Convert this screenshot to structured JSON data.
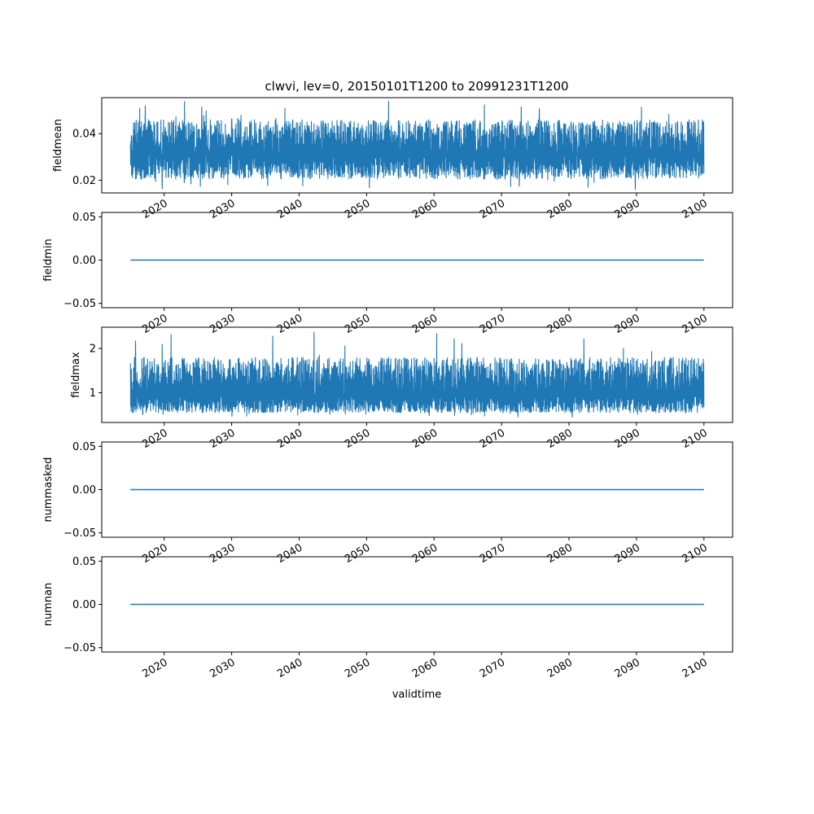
{
  "figure": {
    "title": "clwvi, lev=0, 20150101T1200 to 20991231T1200",
    "xlabel": "validtime",
    "line_color": "#1f77b4"
  },
  "chart_data": [
    {
      "type": "line",
      "ylabel": "fieldmean",
      "xlim": [
        "2010-09-30",
        "2104-04-01"
      ],
      "ylim": [
        0.0145,
        0.0555
      ],
      "yticks": [
        0.02,
        0.04
      ],
      "yticklabels": [
        "0.02",
        "0.04"
      ],
      "xticks": [
        "2020",
        "2030",
        "2040",
        "2050",
        "2060",
        "2070",
        "2080",
        "2090",
        "2100"
      ],
      "series": [
        {
          "x_start": "2015-01-01",
          "x_end": "2099-12-31",
          "center": 0.031,
          "low": 0.0205,
          "high": 0.046,
          "min": 0.016,
          "max": 0.054
        }
      ]
    },
    {
      "type": "line",
      "ylabel": "fieldmin",
      "xlim": [
        "2010-09-30",
        "2104-04-01"
      ],
      "ylim": [
        -0.055,
        0.055
      ],
      "yticks": [
        -0.05,
        0.0,
        0.05
      ],
      "yticklabels": [
        "−0.05",
        "0.00",
        "0.05"
      ],
      "xticks": [
        "2020",
        "2030",
        "2040",
        "2050",
        "2060",
        "2070",
        "2080",
        "2090",
        "2100"
      ],
      "series": [
        {
          "x_start": "2015-01-01",
          "x_end": "2099-12-31",
          "constant": 0.0
        }
      ]
    },
    {
      "type": "line",
      "ylabel": "fieldmax",
      "xlim": [
        "2010-09-30",
        "2104-04-01"
      ],
      "ylim": [
        0.33,
        2.48
      ],
      "yticks": [
        1,
        2
      ],
      "yticklabels": [
        "1",
        "2"
      ],
      "xticks": [
        "2020",
        "2030",
        "2040",
        "2050",
        "2060",
        "2070",
        "2080",
        "2090",
        "2100"
      ],
      "series": [
        {
          "x_start": "2015-01-01",
          "x_end": "2099-12-31",
          "center": 0.95,
          "low": 0.55,
          "high": 1.8,
          "min": 0.45,
          "max": 2.37
        }
      ]
    },
    {
      "type": "line",
      "ylabel": "nummasked",
      "xlim": [
        "2010-09-30",
        "2104-04-01"
      ],
      "ylim": [
        -0.055,
        0.055
      ],
      "yticks": [
        -0.05,
        0.0,
        0.05
      ],
      "yticklabels": [
        "−0.05",
        "0.00",
        "0.05"
      ],
      "xticks": [
        "2020",
        "2030",
        "2040",
        "2050",
        "2060",
        "2070",
        "2080",
        "2090",
        "2100"
      ],
      "series": [
        {
          "x_start": "2015-01-01",
          "x_end": "2099-12-31",
          "constant": 0.0
        }
      ]
    },
    {
      "type": "line",
      "ylabel": "numnan",
      "xlim": [
        "2010-09-30",
        "2104-04-01"
      ],
      "ylim": [
        -0.055,
        0.055
      ],
      "yticks": [
        -0.05,
        0.0,
        0.05
      ],
      "yticklabels": [
        "−0.05",
        "0.00",
        "0.05"
      ],
      "xticks": [
        "2020",
        "2030",
        "2040",
        "2050",
        "2060",
        "2070",
        "2080",
        "2090",
        "2100"
      ],
      "series": [
        {
          "x_start": "2015-01-01",
          "x_end": "2099-12-31",
          "constant": 0.0
        }
      ]
    }
  ]
}
